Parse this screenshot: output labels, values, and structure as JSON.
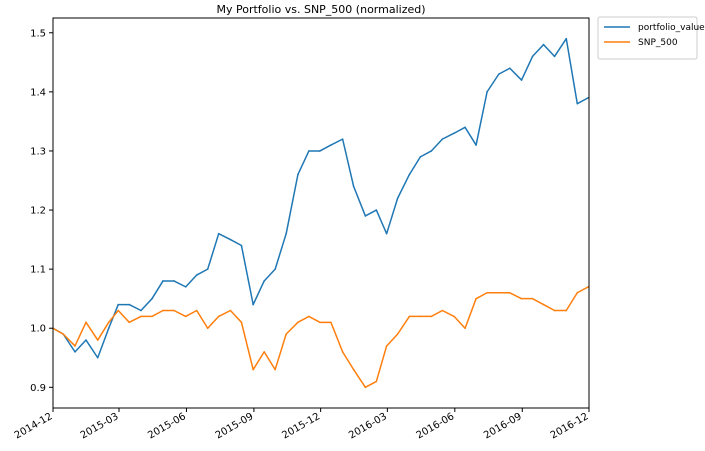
{
  "chart_data": {
    "type": "line",
    "title": "My Portfolio vs. SNP_500 (normalized)",
    "xlabel": "",
    "ylabel": "",
    "xlim": [
      "2014-12",
      "2016-12"
    ],
    "ylim": [
      0.865,
      1.525
    ],
    "x_ticks": [
      "2014-12",
      "2015-03",
      "2015-06",
      "2015-09",
      "2015-12",
      "2016-03",
      "2016-06",
      "2016-09",
      "2016-12"
    ],
    "y_ticks": [
      0.9,
      1.0,
      1.1,
      1.2,
      1.3,
      1.4,
      1.5
    ],
    "y_tick_labels": [
      "0.9",
      "1.0",
      "1.1",
      "1.2",
      "1.3",
      "1.4",
      "1.5"
    ],
    "grid": false,
    "legend_position": "outside-top-right",
    "x": [
      "2014-12-01",
      "2014-12-15",
      "2014-12-31",
      "2015-01-15",
      "2015-01-31",
      "2015-02-15",
      "2015-02-28",
      "2015-03-15",
      "2015-03-31",
      "2015-04-15",
      "2015-04-30",
      "2015-05-15",
      "2015-05-31",
      "2015-06-15",
      "2015-06-30",
      "2015-07-15",
      "2015-07-31",
      "2015-08-15",
      "2015-08-31",
      "2015-09-15",
      "2015-09-30",
      "2015-10-15",
      "2015-10-31",
      "2015-11-15",
      "2015-11-30",
      "2015-12-15",
      "2015-12-31",
      "2016-01-15",
      "2016-01-31",
      "2016-02-15",
      "2016-02-29",
      "2016-03-15",
      "2016-03-31",
      "2016-04-15",
      "2016-04-30",
      "2016-05-15",
      "2016-05-31",
      "2016-06-15",
      "2016-06-30",
      "2016-07-15",
      "2016-07-31",
      "2016-08-15",
      "2016-08-31",
      "2016-09-15",
      "2016-09-30",
      "2016-10-15",
      "2016-10-31",
      "2016-11-15",
      "2016-11-30"
    ],
    "series": [
      {
        "name": "portfolio_value",
        "color": "#1f77b4",
        "values": [
          1.0,
          0.99,
          0.96,
          0.98,
          0.95,
          1.0,
          1.04,
          1.04,
          1.03,
          1.05,
          1.08,
          1.08,
          1.07,
          1.09,
          1.1,
          1.16,
          1.15,
          1.14,
          1.04,
          1.08,
          1.1,
          1.16,
          1.26,
          1.3,
          1.3,
          1.31,
          1.32,
          1.24,
          1.19,
          1.2,
          1.16,
          1.22,
          1.26,
          1.29,
          1.3,
          1.32,
          1.33,
          1.34,
          1.31,
          1.4,
          1.43,
          1.44,
          1.42,
          1.46,
          1.48,
          1.46,
          1.49,
          1.38,
          1.39
        ]
      },
      {
        "name": "SNP_500",
        "color": "#ff7f0e",
        "values": [
          1.0,
          0.99,
          0.97,
          1.01,
          0.98,
          1.01,
          1.03,
          1.01,
          1.02,
          1.02,
          1.03,
          1.03,
          1.02,
          1.03,
          1.0,
          1.02,
          1.03,
          1.01,
          0.93,
          0.96,
          0.93,
          0.99,
          1.01,
          1.02,
          1.01,
          1.01,
          0.96,
          0.93,
          0.9,
          0.91,
          0.97,
          0.99,
          1.02,
          1.02,
          1.02,
          1.03,
          1.02,
          1.0,
          1.05,
          1.06,
          1.06,
          1.06,
          1.05,
          1.05,
          1.04,
          1.03,
          1.03,
          1.06,
          1.07
        ]
      }
    ]
  }
}
